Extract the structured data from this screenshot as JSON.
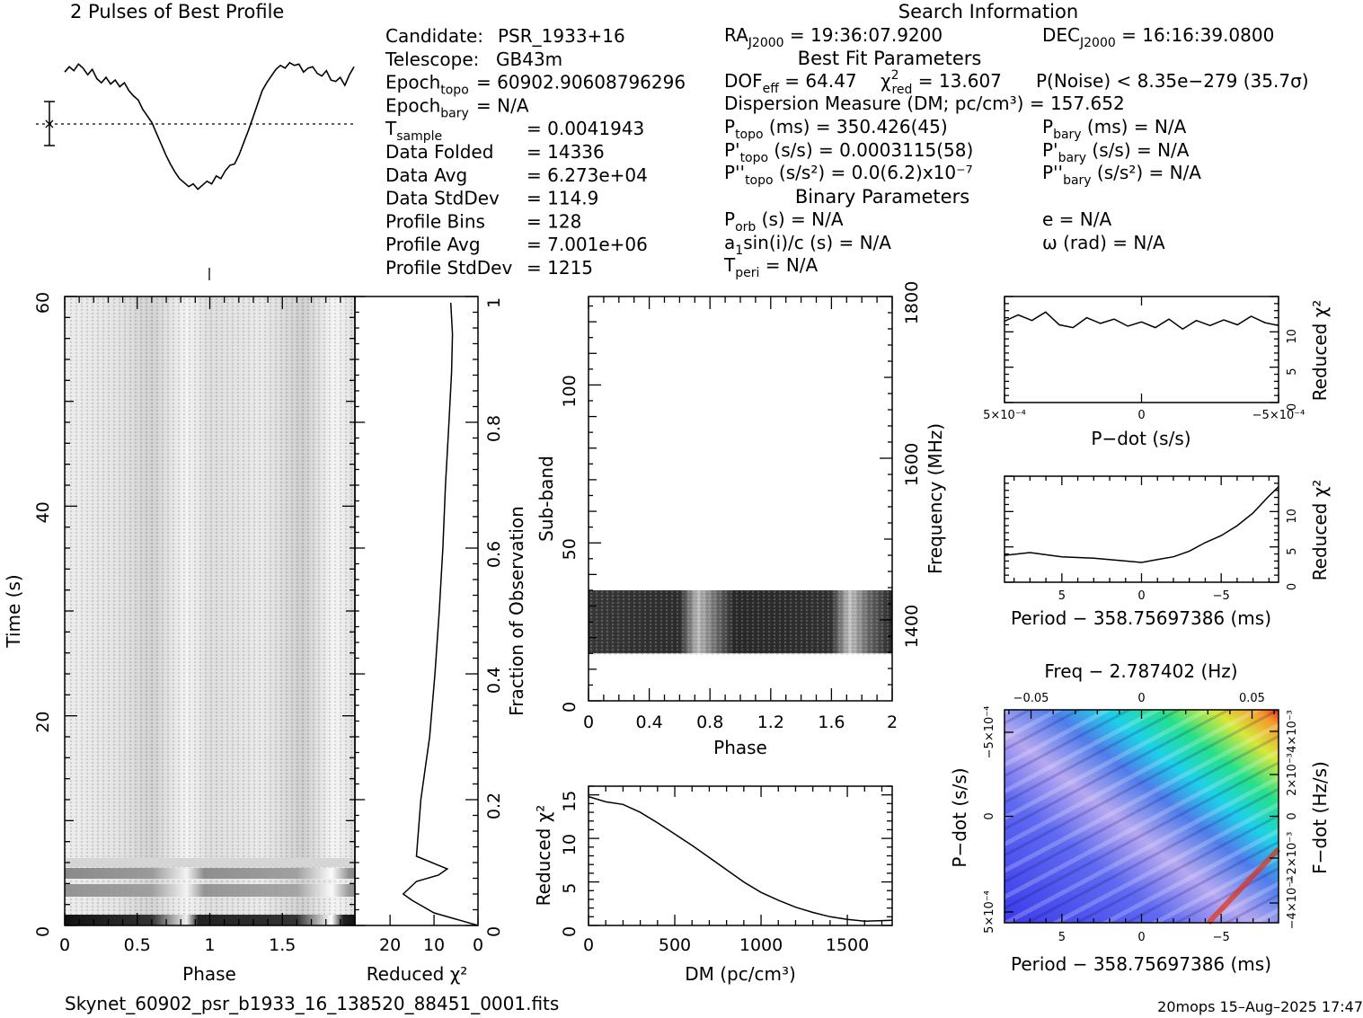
{
  "titles": {
    "profile": "2 Pulses of Best Profile",
    "search": "Search Information",
    "best_fit": "Best Fit Parameters",
    "binary": "Binary Parameters",
    "footer_file": "Skynet_60902_psr_b1933_16_138520_88451_0001.fits",
    "footer_stamp": "20mops 15–Aug–2025 17:47"
  },
  "info_left": [
    {
      "label": "Candidate:",
      "value": "PSR_1933+16"
    },
    {
      "label": "Telescope:",
      "value": "GB43m"
    },
    {
      "label": "Epoch",
      "sub": "topo",
      "value": "= 60902.90608796296"
    },
    {
      "label": "Epoch",
      "sub": "bary",
      "value": "= N/A"
    },
    {
      "label": "T",
      "sub": "sample",
      "value": "=   0.0041943"
    },
    {
      "label": "Data Folded",
      "value": "=   14336"
    },
    {
      "label": "Data Avg",
      "value": "=   6.273e+04"
    },
    {
      "label": "Data StdDev",
      "value": "=   114.9"
    },
    {
      "label": "Profile Bins",
      "value": "=   128"
    },
    {
      "label": "Profile Avg",
      "value": "=   7.001e+06"
    },
    {
      "label": "Profile StdDev",
      "value": "=   1215"
    }
  ],
  "info_right": {
    "ra": {
      "pre": "RA",
      "sub": "J2000",
      "post": " = 19:36:07.9200"
    },
    "dec": {
      "pre": "DEC",
      "sub": "J2000",
      "post": " = 16:16:39.0800"
    },
    "dof": {
      "pre": "DOF",
      "sub": "eff",
      "post": " = 64.47"
    },
    "chi": {
      "pre": "χ",
      "sup": "2",
      "sub": "red",
      "post": " = 13.607"
    },
    "pnoise": "P(Noise) < 8.35e−279   (35.7σ)",
    "dm": "Dispersion Measure (DM; pc/cm³) = 157.652",
    "ptopo": {
      "pre": "P",
      "sub": "topo",
      "post": " (ms) =  350.426(45)"
    },
    "pbary": {
      "pre": "P",
      "sub": "bary",
      "post": " (ms) = N/A"
    },
    "pdtopo": {
      "pre": "P'",
      "sub": "topo",
      "post": " (s/s) =  0.0003115(58)"
    },
    "pdbary": {
      "pre": "P'",
      "sub": "bary",
      "post": " (s/s) = N/A"
    },
    "pddtopo": {
      "pre": "P''",
      "sub": "topo",
      "post": " (s/s²) = 0.0(6.2)x10⁻⁷"
    },
    "pddbary": {
      "pre": "P''",
      "sub": "bary",
      "post": " (s/s²) = N/A"
    },
    "porb": {
      "pre": "P",
      "sub": "orb",
      "post": " (s) = N/A"
    },
    "asini": {
      "pre": "a",
      "sub": "1",
      "post": "sin(i)/c (s) = N/A"
    },
    "tperi": {
      "pre": "T",
      "sub": "peri",
      "post": " = N/A"
    },
    "ecc": "e = N/A",
    "omega": "ω (rad) = N/A"
  },
  "chart_data": [
    {
      "id": "pulse-profile",
      "type": "line",
      "title": "2 Pulses of Best Profile",
      "x_range": [
        0,
        2
      ],
      "note": "two cycles of the folded profile, no axes",
      "y": [
        0.78,
        0.86,
        0.8,
        0.9,
        0.84,
        0.74,
        0.82,
        0.68,
        0.62,
        0.7,
        0.6,
        0.66,
        0.56,
        0.62,
        0.5,
        0.42,
        0.36,
        0.22,
        0.12,
        0.02,
        -0.14,
        -0.3,
        -0.46,
        -0.6,
        -0.72,
        -0.82,
        -0.88,
        -0.94,
        -0.9,
        -0.98,
        -0.92,
        -0.86,
        -0.9,
        -0.78,
        -0.82,
        -0.7,
        -0.62,
        -0.6,
        -0.46,
        -0.28,
        -0.1,
        0.1,
        0.3,
        0.5,
        0.62,
        0.72,
        0.82,
        0.88,
        0.84,
        0.92,
        0.88,
        0.9,
        0.78,
        0.84,
        0.86,
        0.76,
        0.72,
        0.8,
        0.66,
        0.64,
        0.7,
        0.58,
        0.74,
        0.86
      ]
    },
    {
      "id": "time-phase",
      "type": "heatmap",
      "xlabel": "Phase",
      "ylabel": "Time (s)",
      "x_ticks": [
        0,
        0.5,
        1,
        1.5
      ],
      "y_ticks": [
        0,
        20,
        40,
        60
      ],
      "y_range": [
        0,
        60
      ],
      "x_range": [
        0,
        2
      ]
    },
    {
      "id": "time-chi2",
      "type": "line",
      "xlabel": "Reduced χ²",
      "ylabel": "Fraction of Observation",
      "x_ticks": [
        20,
        10,
        0
      ],
      "x_range": [
        28,
        0
      ],
      "y_ticks": [
        0,
        0.2,
        0.4,
        0.6,
        0.8,
        1
      ],
      "points": [
        [
          0,
          0
        ],
        [
          5,
          0.01
        ],
        [
          10,
          0.02
        ],
        [
          15,
          0.04
        ],
        [
          17,
          0.05
        ],
        [
          14,
          0.07
        ],
        [
          9,
          0.08
        ],
        [
          7,
          0.09
        ],
        [
          14,
          0.11
        ],
        [
          13,
          0.2
        ],
        [
          11,
          0.3
        ],
        [
          9.8,
          0.4
        ],
        [
          8.8,
          0.5
        ],
        [
          8,
          0.6
        ],
        [
          7.4,
          0.7
        ],
        [
          6.6,
          0.8
        ],
        [
          6,
          0.88
        ],
        [
          5.8,
          0.94
        ],
        [
          6.2,
          0.99
        ]
      ]
    },
    {
      "id": "subband-phase",
      "type": "heatmap",
      "xlabel": "Phase",
      "ylabel": "Sub-band",
      "y2label": "Frequency (MHz)",
      "x_ticks": [
        0,
        0.4,
        0.8,
        1.2,
        1.6,
        2
      ],
      "y_ticks": [
        0,
        50,
        100
      ],
      "y2_ticks": [
        1400,
        1600,
        1800
      ],
      "y_range": [
        0,
        128
      ],
      "band": [
        15,
        35
      ]
    },
    {
      "id": "dm-chi2",
      "type": "line",
      "xlabel": "DM (pc/cm³)",
      "ylabel": "Reduced χ²",
      "x_ticks": [
        0,
        500,
        1000,
        1500
      ],
      "y_ticks": [
        0,
        5,
        10,
        15
      ],
      "x_range": [
        0,
        1760
      ],
      "y_range": [
        0,
        16
      ],
      "points": [
        [
          0,
          14.8
        ],
        [
          100,
          14.2
        ],
        [
          200,
          13.9
        ],
        [
          300,
          13.0
        ],
        [
          400,
          11.8
        ],
        [
          500,
          10.5
        ],
        [
          600,
          9.2
        ],
        [
          700,
          7.8
        ],
        [
          800,
          6.4
        ],
        [
          900,
          5.0
        ],
        [
          1000,
          3.8
        ],
        [
          1100,
          2.9
        ],
        [
          1200,
          2.1
        ],
        [
          1300,
          1.5
        ],
        [
          1400,
          1.0
        ],
        [
          1500,
          0.7
        ],
        [
          1600,
          0.5
        ],
        [
          1760,
          0.6
        ]
      ]
    },
    {
      "id": "pdot-chi2",
      "type": "line",
      "xlabel": "P−dot (s/s)",
      "ylabel": "Reduced χ²",
      "x_tick_labels": [
        "5×10⁻⁴",
        "0",
        "−5×10⁻⁴"
      ],
      "y_ticks": [
        0,
        5,
        10
      ],
      "y_range": [
        0,
        15
      ],
      "points": [
        [
          0,
          11.5
        ],
        [
          0.05,
          12.4
        ],
        [
          0.1,
          11.6
        ],
        [
          0.15,
          12.8
        ],
        [
          0.2,
          11.0
        ],
        [
          0.25,
          10.6
        ],
        [
          0.3,
          12.0
        ],
        [
          0.35,
          11.2
        ],
        [
          0.4,
          11.8
        ],
        [
          0.45,
          10.8
        ],
        [
          0.5,
          11.4
        ],
        [
          0.55,
          10.6
        ],
        [
          0.6,
          11.8
        ],
        [
          0.65,
          10.4
        ],
        [
          0.7,
          11.6
        ],
        [
          0.75,
          10.9
        ],
        [
          0.8,
          11.7
        ],
        [
          0.85,
          11.0
        ],
        [
          0.9,
          12.2
        ],
        [
          0.95,
          11.3
        ],
        [
          1.0,
          10.9
        ]
      ]
    },
    {
      "id": "period-chi2",
      "type": "line",
      "xlabel": "Period − 358.75697386 (ms)",
      "ylabel": "Reduced χ²",
      "x_ticks": [
        5,
        0,
        -5
      ],
      "x_range": [
        8.6,
        -8.6
      ],
      "y_ticks": [
        0,
        5,
        10
      ],
      "y_range": [
        0,
        15
      ],
      "points": [
        [
          8.6,
          3.8
        ],
        [
          7,
          4.2
        ],
        [
          5,
          3.6
        ],
        [
          3,
          3.4
        ],
        [
          1,
          3.0
        ],
        [
          0,
          2.8
        ],
        [
          -1,
          3.2
        ],
        [
          -2,
          3.6
        ],
        [
          -3,
          4.4
        ],
        [
          -4,
          5.6
        ],
        [
          -5,
          6.6
        ],
        [
          -6,
          8.0
        ],
        [
          -7,
          9.8
        ],
        [
          -8,
          12.2
        ],
        [
          -8.6,
          13.5
        ]
      ]
    },
    {
      "id": "pdot-period-map",
      "type": "heatmap",
      "title": "Freq − 2.787402 (Hz)",
      "xlabel": "Period − 358.75697386 (ms)",
      "ylabel": "P−dot (s/s)",
      "y2label": "F−dot (Hz/s)",
      "x_ticks": [
        5,
        0,
        -5
      ],
      "top_ticks": [
        -0.05,
        0,
        0.05
      ],
      "y_tick_labels": [
        "−5×10⁻⁴",
        "0",
        "5×10⁻⁴"
      ],
      "y2_tick_labels": [
        "4×10⁻³",
        "2×10⁻³",
        "0",
        "−2×10⁻³",
        "−4×10⁻³"
      ]
    }
  ]
}
